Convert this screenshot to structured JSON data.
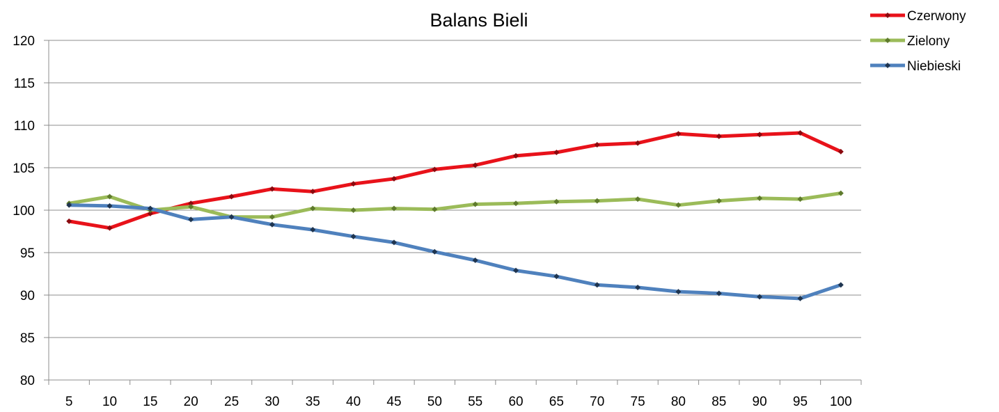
{
  "chart_data": {
    "type": "line",
    "title": "Balans Bieli",
    "xlabel": "",
    "ylabel": "",
    "ylim": [
      80,
      120
    ],
    "yticks": [
      "80",
      "85",
      "90",
      "95",
      "100",
      "105",
      "110",
      "115",
      "120"
    ],
    "categories": [
      "5",
      "10",
      "15",
      "20",
      "25",
      "30",
      "35",
      "40",
      "45",
      "50",
      "55",
      "60",
      "65",
      "70",
      "75",
      "80",
      "85",
      "90",
      "95",
      "100"
    ],
    "grid": true,
    "legend": "top-right",
    "series": [
      {
        "name": "Czerwony",
        "color": "#e8121a",
        "values": [
          98.7,
          97.9,
          99.6,
          100.8,
          101.6,
          102.5,
          102.2,
          103.1,
          103.7,
          104.8,
          105.3,
          106.4,
          106.8,
          107.7,
          107.9,
          109.0,
          108.7,
          108.9,
          109.1,
          106.9
        ]
      },
      {
        "name": "Zielony",
        "color": "#9bbb59",
        "values": [
          100.8,
          101.6,
          100.0,
          100.4,
          99.2,
          99.2,
          100.2,
          100.0,
          100.2,
          100.1,
          100.7,
          100.8,
          101.0,
          101.1,
          101.3,
          100.6,
          101.1,
          101.4,
          101.3,
          102.0
        ]
      },
      {
        "name": "Niebieski",
        "color": "#4f81bd",
        "values": [
          100.6,
          100.5,
          100.2,
          98.9,
          99.2,
          98.3,
          97.7,
          96.9,
          96.2,
          95.1,
          94.1,
          92.9,
          92.2,
          91.2,
          90.9,
          90.4,
          90.2,
          89.8,
          89.6,
          91.2
        ]
      }
    ]
  }
}
